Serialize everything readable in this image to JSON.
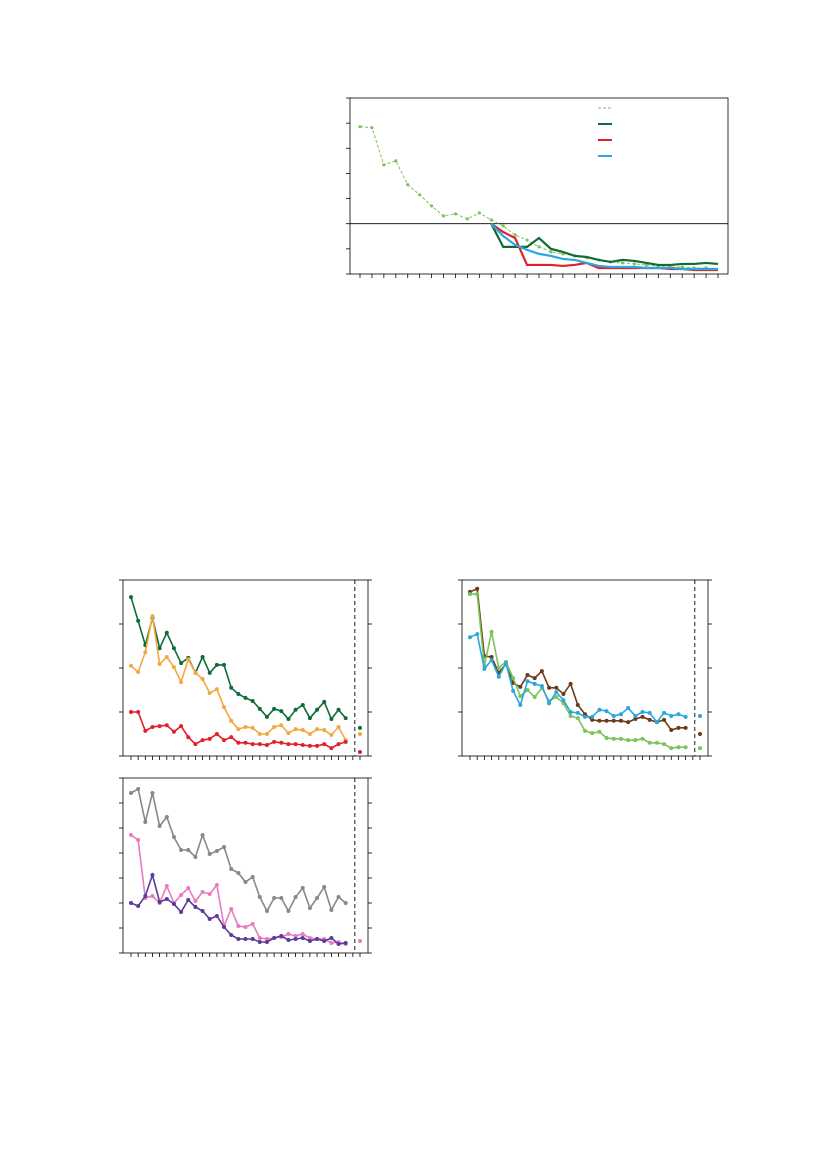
{
  "chart_data": [
    {
      "type": "line",
      "categories": [
        null,
        null,
        null,
        null,
        null,
        null,
        null,
        null,
        null,
        null,
        null,
        null,
        null,
        null,
        null,
        null,
        null,
        null,
        null,
        null,
        null,
        null,
        null,
        null,
        null,
        null,
        null,
        null,
        null,
        null,
        null
      ],
      "ylim": [
        0,
        7
      ],
      "yticks": [
        0,
        1,
        2,
        3,
        4,
        5,
        6,
        7
      ],
      "hline": 2,
      "legend": "upper right",
      "series": [
        {
          "color": "#7cc35a",
          "dashed": true,
          "markers": true,
          "values": [
            5.86,
            5.82,
            4.34,
            4.5,
            3.55,
            3.15,
            2.71,
            2.31,
            2.39,
            2.19,
            2.43,
            2.15,
            1.91,
            1.55,
            1.35,
            1.08,
            0.88,
            0.8,
            0.72,
            0.64,
            0.56,
            0.48,
            0.44,
            0.4,
            0.36,
            0.32,
            0.28,
            0.28,
            0.24,
            0.24,
            null
          ]
        },
        {
          "color": "#0f6b38",
          "dashed": false,
          "markers": false,
          "values": [
            null,
            null,
            null,
            null,
            null,
            null,
            null,
            null,
            null,
            null,
            null,
            2.0,
            1.08,
            1.08,
            1.08,
            1.43,
            1.0,
            0.88,
            0.72,
            0.68,
            0.56,
            0.48,
            0.56,
            0.52,
            0.44,
            0.36,
            0.36,
            0.4,
            0.4,
            0.44,
            0.4
          ]
        },
        {
          "color": "#e0202c",
          "dashed": false,
          "markers": false,
          "values": [
            null,
            null,
            null,
            null,
            null,
            null,
            null,
            null,
            null,
            null,
            null,
            2.0,
            1.67,
            1.43,
            0.36,
            0.36,
            0.36,
            0.32,
            0.36,
            0.44,
            0.24,
            0.24,
            0.24,
            0.24,
            0.24,
            0.24,
            0.2,
            0.2,
            0.16,
            0.16,
            0.16
          ]
        },
        {
          "color": "#2aa6e0",
          "dashed": false,
          "markers": false,
          "values": [
            null,
            null,
            null,
            null,
            null,
            null,
            null,
            null,
            null,
            null,
            null,
            2.0,
            1.51,
            1.16,
            0.96,
            0.8,
            0.72,
            0.6,
            0.56,
            0.44,
            0.32,
            0.28,
            0.28,
            0.28,
            0.24,
            0.24,
            0.24,
            0.2,
            0.2,
            0.2,
            0.2
          ]
        }
      ]
    },
    {
      "type": "line",
      "categories": [
        null,
        null,
        null,
        null,
        null,
        null,
        null,
        null,
        null,
        null,
        null,
        null,
        null,
        null,
        null,
        null,
        null,
        null,
        null,
        null,
        null,
        null,
        null,
        null,
        null,
        null,
        null,
        null,
        null,
        null,
        null,
        null,
        null
      ],
      "ylim": [
        0,
        4
      ],
      "yticks": [
        0,
        1,
        2,
        3,
        4
      ],
      "series": [
        {
          "color": "#0f6b38",
          "dashed": false,
          "markers": true,
          "values": [
            3.61,
            3.07,
            2.52,
            3.14,
            2.45,
            2.8,
            2.45,
            2.11,
            2.23,
            1.89,
            2.25,
            1.89,
            2.07,
            2.07,
            1.55,
            1.41,
            1.32,
            1.25,
            1.07,
            0.89,
            1.07,
            1.02,
            0.84,
            1.05,
            1.16,
            0.86,
            1.05,
            1.23,
            0.84,
            1.05,
            0.86,
            null,
            0.64
          ]
        },
        {
          "color": "#f5a742",
          "dashed": false,
          "markers": true,
          "values": [
            2.05,
            1.91,
            2.36,
            3.18,
            2.09,
            2.25,
            2.02,
            1.68,
            2.2,
            1.89,
            1.75,
            1.43,
            1.52,
            1.11,
            0.8,
            0.61,
            0.66,
            0.64,
            0.5,
            0.5,
            0.66,
            0.7,
            0.52,
            0.61,
            0.59,
            0.5,
            0.61,
            0.59,
            0.48,
            0.66,
            0.36,
            null,
            0.5
          ]
        },
        {
          "color": "#e0202c",
          "dashed": false,
          "markers": true,
          "values": [
            1.0,
            1.0,
            0.57,
            0.66,
            0.68,
            0.7,
            0.55,
            0.68,
            0.43,
            0.27,
            0.36,
            0.39,
            0.5,
            0.36,
            0.43,
            0.3,
            0.3,
            0.27,
            0.27,
            0.25,
            0.32,
            0.3,
            0.27,
            0.27,
            0.25,
            0.23,
            0.23,
            0.27,
            0.18,
            0.27,
            0.32,
            null,
            0.09
          ]
        }
      ]
    },
    {
      "type": "line",
      "categories": [
        null,
        null,
        null,
        null,
        null,
        null,
        null,
        null,
        null,
        null,
        null,
        null,
        null,
        null,
        null,
        null,
        null,
        null,
        null,
        null,
        null,
        null,
        null,
        null,
        null,
        null,
        null,
        null,
        null,
        null,
        null,
        null,
        null
      ],
      "ylim": [
        0,
        4
      ],
      "yticks": [
        0,
        1,
        2,
        3,
        4
      ],
      "series": [
        {
          "color": "#6b3a1a",
          "dashed": false,
          "markers": true,
          "values": [
            3.73,
            3.8,
            2.27,
            2.25,
            1.89,
            2.09,
            1.66,
            1.57,
            1.84,
            1.77,
            1.93,
            1.55,
            1.55,
            1.41,
            1.64,
            1.16,
            0.95,
            0.82,
            0.8,
            0.8,
            0.8,
            0.8,
            0.77,
            0.84,
            0.89,
            0.82,
            0.77,
            0.82,
            0.59,
            0.64,
            0.64,
            null,
            0.5
          ]
        },
        {
          "color": "#7cc35a",
          "dashed": false,
          "markers": true,
          "values": [
            3.68,
            3.68,
            2.05,
            2.82,
            2.0,
            2.14,
            1.77,
            1.36,
            1.5,
            1.34,
            1.55,
            1.25,
            1.34,
            1.2,
            0.91,
            0.86,
            0.57,
            0.52,
            0.55,
            0.41,
            0.39,
            0.39,
            0.36,
            0.36,
            0.39,
            0.3,
            0.3,
            0.27,
            0.18,
            0.2,
            0.2,
            null,
            0.18
          ]
        },
        {
          "color": "#2aa6e0",
          "dashed": false,
          "markers": true,
          "values": [
            2.7,
            2.77,
            1.98,
            2.18,
            1.8,
            2.11,
            1.48,
            1.16,
            1.7,
            1.64,
            1.59,
            1.2,
            1.45,
            1.27,
            1.0,
            0.98,
            0.89,
            0.89,
            1.05,
            1.02,
            0.91,
            0.95,
            1.09,
            0.91,
            1.0,
            0.98,
            0.77,
            0.98,
            0.91,
            0.95,
            0.89,
            null,
            0.91
          ]
        }
      ]
    },
    {
      "type": "line",
      "categories": [
        null,
        null,
        null,
        null,
        null,
        null,
        null,
        null,
        null,
        null,
        null,
        null,
        null,
        null,
        null,
        null,
        null,
        null,
        null,
        null,
        null,
        null,
        null,
        null,
        null,
        null,
        null,
        null,
        null,
        null,
        null,
        null,
        null
      ],
      "ylim": [
        0,
        7
      ],
      "yticks": [
        0,
        1,
        2,
        3,
        4,
        5,
        6,
        7
      ],
      "series": [
        {
          "color": "#888888",
          "dashed": false,
          "markers": true,
          "values": [
            6.4,
            6.56,
            5.24,
            6.4,
            5.08,
            5.44,
            4.64,
            4.12,
            4.12,
            3.84,
            4.72,
            3.96,
            4.08,
            4.24,
            3.36,
            3.2,
            2.84,
            3.04,
            2.24,
            1.68,
            2.2,
            2.2,
            1.68,
            2.24,
            2.6,
            1.8,
            2.2,
            2.64,
            1.72,
            2.24,
            2.0,
            null,
            null
          ]
        },
        {
          "color": "#e87bbf",
          "dashed": false,
          "markers": true,
          "values": [
            4.72,
            4.52,
            2.2,
            2.28,
            2.0,
            2.68,
            2.0,
            2.32,
            2.6,
            2.08,
            2.44,
            2.36,
            2.72,
            1.08,
            1.76,
            1.08,
            1.04,
            1.16,
            0.6,
            0.56,
            0.6,
            0.64,
            0.76,
            0.68,
            0.76,
            0.6,
            0.56,
            0.56,
            0.4,
            0.44,
            0.36,
            null,
            0.48
          ]
        },
        {
          "color": "#5b3a9a",
          "dashed": false,
          "markers": true,
          "values": [
            2.0,
            1.88,
            2.28,
            3.12,
            2.04,
            2.16,
            1.96,
            1.64,
            2.12,
            1.84,
            1.68,
            1.36,
            1.48,
            1.04,
            0.72,
            0.56,
            0.56,
            0.56,
            0.44,
            0.44,
            0.6,
            0.68,
            0.52,
            0.56,
            0.6,
            0.48,
            0.56,
            0.48,
            0.6,
            0.36,
            0.4,
            null,
            null
          ]
        }
      ]
    }
  ]
}
